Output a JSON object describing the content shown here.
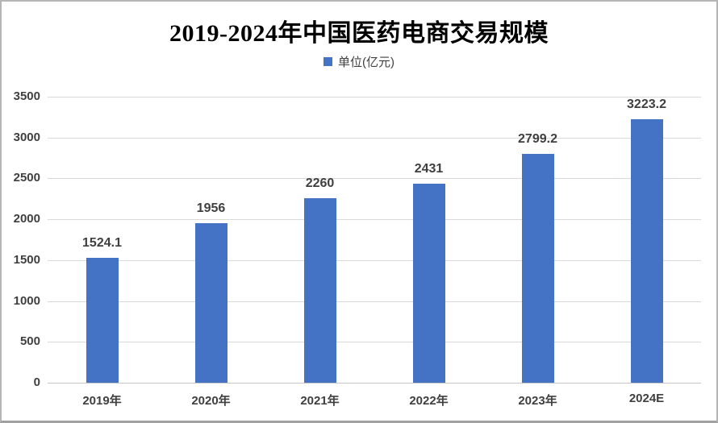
{
  "window": {
    "background": "#ffffff",
    "border_color": "#b5b5b5"
  },
  "chart_data": {
    "type": "bar",
    "title": "2019-2024年中国医药电商交易规模",
    "legend_label": "单位(亿元)",
    "legend_position": "top-center",
    "categories": [
      "2019年",
      "2020年",
      "2021年",
      "2022年",
      "2023年",
      "2024E"
    ],
    "values": [
      1524.1,
      1956,
      2260,
      2431,
      2799.2,
      3223.2
    ],
    "value_labels": [
      "1524.1",
      "1956",
      "2260",
      "2431",
      "2799.2",
      "3223.2"
    ],
    "xlabel": "",
    "ylabel": "",
    "ylim": [
      0,
      3500
    ],
    "y_ticks": [
      0,
      500,
      1000,
      1500,
      2000,
      2500,
      3000,
      3500
    ],
    "grid": true,
    "bar_color": "#4472C4",
    "text_color": "#3f3f3f",
    "gridline_color": "#d9d9d9"
  }
}
